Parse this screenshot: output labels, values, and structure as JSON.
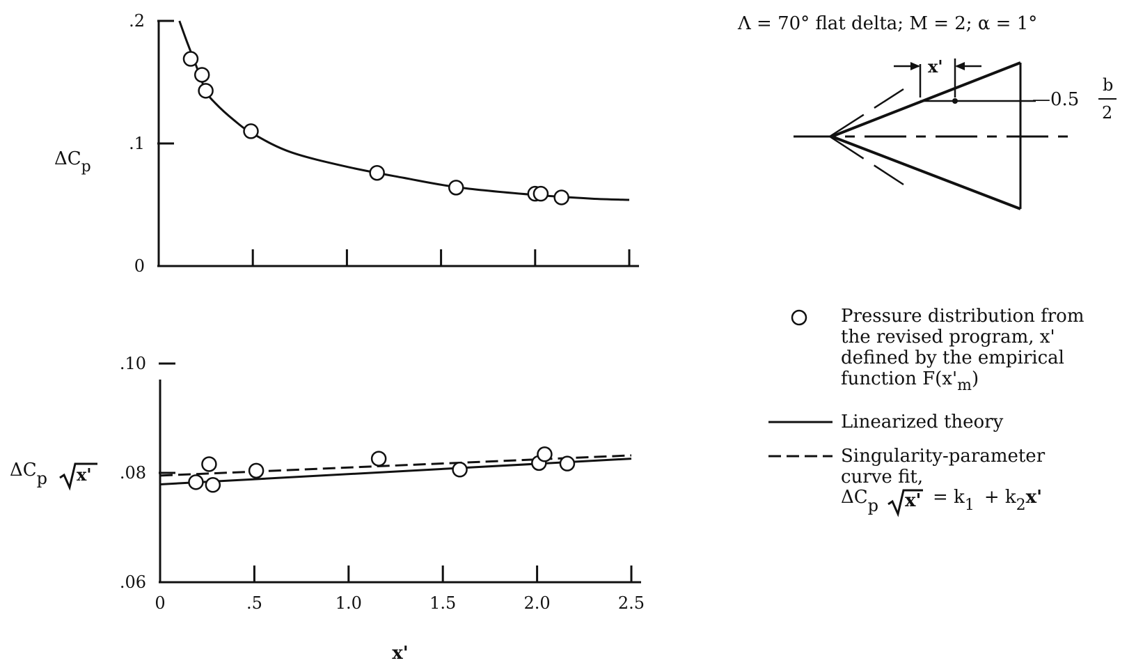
{
  "chart_data": [
    {
      "type": "line",
      "panel": "top",
      "ylabel": {
        "main": "ΔC",
        "sub": "p"
      },
      "ylim": [
        0,
        0.2
      ],
      "xlim": [
        0,
        2.5
      ],
      "yticks": [
        ".2",
        ".1",
        "0"
      ],
      "ytick_values": [
        0.2,
        0.1,
        0.0
      ],
      "xtick_values": [
        0.5,
        1.0,
        1.5,
        2.0,
        2.5
      ],
      "series": [
        {
          "kind": "points",
          "x": [
            0.17,
            0.23,
            0.25,
            0.49,
            1.16,
            1.58,
            2.0,
            2.03,
            2.14
          ],
          "y": [
            0.169,
            0.156,
            0.143,
            0.11,
            0.076,
            0.064,
            0.059,
            0.059,
            0.056
          ]
        },
        {
          "kind": "curve",
          "style": "solid",
          "x": [
            0.11,
            0.15,
            0.2,
            0.25,
            0.3,
            0.4,
            0.5,
            0.7,
            1.0,
            1.3,
            1.6,
            2.0,
            2.3,
            2.5
          ],
          "y": [
            0.2,
            0.183,
            0.163,
            0.143,
            0.133,
            0.119,
            0.108,
            0.093,
            0.081,
            0.072,
            0.064,
            0.058,
            0.055,
            0.054
          ]
        }
      ]
    },
    {
      "type": "line",
      "panel": "bottom",
      "ylabel": {
        "main": "ΔC",
        "sub": "p",
        "radicand": "x'"
      },
      "ylim": [
        0.06,
        0.1
      ],
      "xlim": [
        0,
        2.5
      ],
      "xlabel": "x'",
      "yticks": [
        ".10",
        ".08",
        ".06"
      ],
      "ytick_values": [
        0.1,
        0.08,
        0.06
      ],
      "xticks": [
        "0",
        ".5",
        "1.0",
        "1.5",
        "2.0",
        "2.5"
      ],
      "xtick_values": [
        0,
        0.5,
        1.0,
        1.5,
        2.0,
        2.5
      ],
      "series": [
        {
          "name": "Pressure distribution from the revised program, x' defined by the empirical function F(x'm)",
          "kind": "points",
          "x": [
            0.19,
            0.26,
            0.28,
            0.51,
            1.16,
            1.59,
            2.01,
            2.04,
            2.16
          ],
          "y": [
            0.0783,
            0.0816,
            0.0778,
            0.0804,
            0.0826,
            0.0806,
            0.0818,
            0.0834,
            0.0817
          ]
        },
        {
          "name": "Linearized theory",
          "kind": "curve",
          "style": "solid",
          "x": [
            0,
            2.5
          ],
          "y": [
            0.0779,
            0.0826
          ]
        },
        {
          "name": "Singularity-parameter curve fit",
          "kind": "curve",
          "style": "dashed",
          "x": [
            0,
            2.5
          ],
          "y": [
            0.0795,
            0.0832
          ]
        }
      ]
    }
  ],
  "header": {
    "title": "Λ = 70° flat delta;  M = 2;  α = 1°"
  },
  "inset": {
    "x_label": "x'",
    "span_label": "—0.5",
    "frac_num": "b",
    "frac_den": "2"
  },
  "legend": {
    "circle_lines": [
      "Pressure  distribution from",
      "the  revised  program,  x'",
      "defined  by  the  empirical",
      "function    F(x'"
    ],
    "circle_sub": "m",
    "circle_close": ")",
    "linear_label": "Linearized  theory",
    "dashed_lines": [
      "Singularity-parameter",
      "curve  fit,"
    ],
    "eq_main": "ΔC",
    "eq_sub_p": "p",
    "eq_radicand": "x'",
    "eq_rest_1": "=  k",
    "eq_sub_1": "1",
    "eq_rest_2": "+  k",
    "eq_sub_2": "2",
    "eq_rest_3": "x'"
  }
}
